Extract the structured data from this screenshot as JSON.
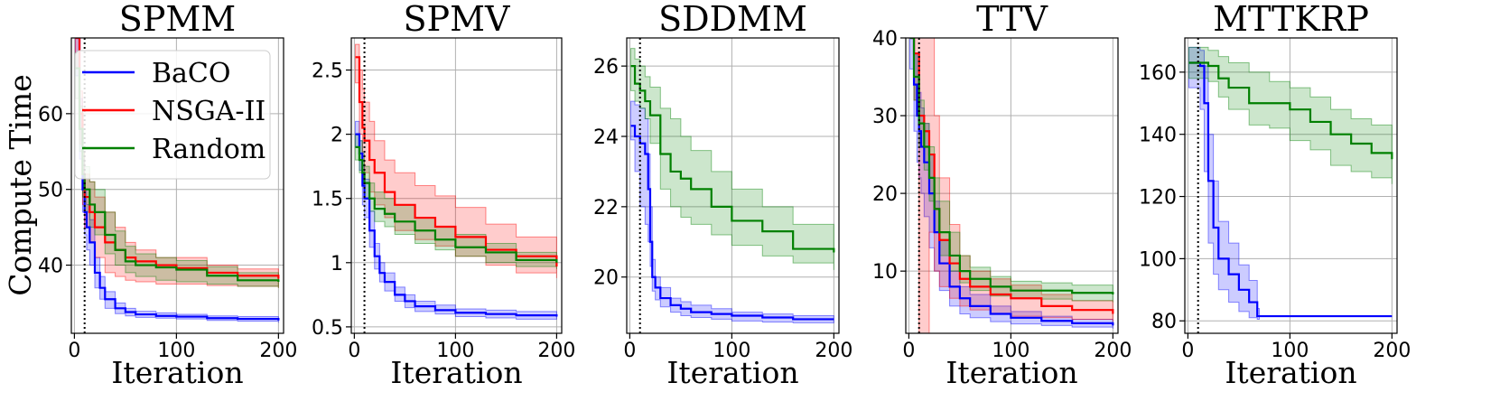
{
  "chart_data": {
    "type": "line",
    "ylabel": "Compute Time",
    "legend": {
      "placement": "top-left of first panel",
      "entries": [
        {
          "name": "BaCO",
          "color": "#0000ff"
        },
        {
          "name": "NSGA-II",
          "color": "#ff0000"
        },
        {
          "name": "Random",
          "color": "#008000"
        }
      ]
    },
    "panels": [
      {
        "title": "SPMM",
        "xlabel": "Iteration",
        "xlim": [
          -3,
          205
        ],
        "ylim": [
          31,
          70
        ],
        "xticks": [
          0,
          100,
          200
        ],
        "yticks": [
          40,
          50,
          60
        ],
        "vline_x": 10,
        "series": [
          {
            "name": "BaCO",
            "x": [
              1,
              5,
              8,
              10,
              12,
              15,
              20,
              25,
              30,
              40,
              50,
              60,
              80,
              100,
              130,
              160,
              200
            ],
            "mean": [
              70,
              58,
              50,
              47,
              45,
              43,
              39,
              37,
              35.5,
              34.3,
              33.8,
              33.5,
              33.3,
              33.2,
              33.0,
              32.9,
              32.7
            ],
            "lo": [
              65,
              54,
              47,
              44,
              42,
              40,
              37,
              35.5,
              34.3,
              33.6,
              33.3,
              33.1,
              33.0,
              32.9,
              32.7,
              32.6,
              32.4
            ],
            "hi": [
              70,
              62,
              54,
              50,
              48,
              46,
              41,
              38.5,
              36.5,
              35.0,
              34.3,
              33.9,
              33.7,
              33.5,
              33.3,
              33.2,
              33.0
            ]
          },
          {
            "name": "NSGA-II",
            "x": [
              1,
              5,
              8,
              10,
              15,
              20,
              30,
              40,
              50,
              60,
              80,
              100,
              130,
              160,
              200
            ],
            "mean": [
              70,
              60,
              52,
              49,
              47,
              45,
              43,
              42,
              41,
              40.5,
              40,
              39.6,
              39.0,
              38.6,
              38.2
            ],
            "lo": [
              66,
              56,
              48,
              45,
              43,
              41,
              39,
              38.5,
              38,
              37.8,
              37.5,
              37.5,
              37.3,
              37.2,
              37.0
            ],
            "hi": [
              70,
              63,
              55,
              52,
              51,
              49,
              47,
              45,
              43,
              42,
              41,
              41,
              40,
              39.5,
              39.2
            ]
          },
          {
            "name": "Random",
            "x": [
              1,
              5,
              8,
              10,
              15,
              20,
              30,
              40,
              50,
              60,
              80,
              100,
              130,
              160,
              200
            ],
            "mean": [
              66,
              58,
              52,
              50,
              48,
              47,
              44,
              42,
              40.5,
              40,
              39.7,
              39.4,
              38.6,
              38,
              37.8
            ],
            "lo": [
              62,
              55,
              49,
              47,
              45,
              44,
              41.5,
              40,
              39,
              38.5,
              38,
              37.8,
              37.5,
              37.2,
              37.0
            ],
            "hi": [
              68,
              61,
              55,
              53,
              51,
              50,
              47,
              44.5,
              42.5,
              41.5,
              41,
              40.6,
              39.8,
              39,
              38.6
            ]
          }
        ]
      },
      {
        "title": "SPMV",
        "xlabel": "Iteration",
        "xlim": [
          -3,
          205
        ],
        "ylim": [
          0.45,
          2.75
        ],
        "xticks": [
          0,
          100,
          200
        ],
        "yticks": [
          0.5,
          1.0,
          1.5,
          2.0,
          2.5
        ],
        "vline_x": 10,
        "series": [
          {
            "name": "BaCO",
            "x": [
              1,
              5,
              8,
              10,
              15,
              20,
              25,
              30,
              40,
              50,
              60,
              80,
              100,
              130,
              160,
              200
            ],
            "mean": [
              2.0,
              1.85,
              1.6,
              1.5,
              1.25,
              1.05,
              0.92,
              0.85,
              0.75,
              0.7,
              0.66,
              0.63,
              0.61,
              0.6,
              0.59,
              0.58
            ],
            "lo": [
              1.9,
              1.72,
              1.45,
              1.35,
              1.12,
              0.95,
              0.85,
              0.78,
              0.7,
              0.65,
              0.62,
              0.6,
              0.58,
              0.57,
              0.56,
              0.56
            ],
            "hi": [
              2.1,
              1.95,
              1.75,
              1.65,
              1.4,
              1.15,
              1.0,
              0.92,
              0.81,
              0.75,
              0.7,
              0.67,
              0.64,
              0.63,
              0.62,
              0.61
            ]
          },
          {
            "name": "NSGA-II",
            "x": [
              1,
              5,
              8,
              10,
              15,
              20,
              30,
              40,
              60,
              80,
              100,
              130,
              160,
              200
            ],
            "mean": [
              2.6,
              2.25,
              2.05,
              1.95,
              1.8,
              1.7,
              1.55,
              1.45,
              1.35,
              1.28,
              1.2,
              1.1,
              1.05,
              0.97
            ],
            "lo": [
              2.4,
              2.0,
              1.8,
              1.7,
              1.55,
              1.45,
              1.35,
              1.25,
              1.18,
              1.13,
              1.05,
              0.98,
              0.92,
              0.88
            ],
            "hi": [
              2.7,
              2.5,
              2.35,
              2.25,
              2.1,
              1.95,
              1.8,
              1.7,
              1.6,
              1.52,
              1.43,
              1.3,
              1.2,
              1.08
            ]
          },
          {
            "name": "Random",
            "x": [
              1,
              5,
              8,
              10,
              15,
              20,
              30,
              40,
              60,
              80,
              100,
              130,
              160,
              200
            ],
            "mean": [
              1.9,
              1.8,
              1.7,
              1.62,
              1.5,
              1.42,
              1.38,
              1.32,
              1.25,
              1.18,
              1.12,
              1.08,
              1.02,
              1.0
            ],
            "lo": [
              1.8,
              1.7,
              1.6,
              1.5,
              1.4,
              1.32,
              1.28,
              1.22,
              1.15,
              1.1,
              1.05,
              1.0,
              0.97,
              0.95
            ],
            "hi": [
              2.0,
              1.95,
              1.85,
              1.75,
              1.62,
              1.55,
              1.5,
              1.45,
              1.35,
              1.28,
              1.22,
              1.15,
              1.08,
              1.05
            ]
          }
        ]
      },
      {
        "title": "SDDMM",
        "xlabel": "Iteration",
        "xlim": [
          -3,
          205
        ],
        "ylim": [
          18.4,
          26.8
        ],
        "xticks": [
          0,
          100,
          200
        ],
        "yticks": [
          20,
          22,
          24,
          26
        ],
        "vline_x": 10,
        "series": [
          {
            "name": "BaCO",
            "x": [
              1,
              5,
              10,
              15,
              18,
              20,
              22,
              25,
              30,
              40,
              50,
              60,
              80,
              100,
              130,
              160,
              200
            ],
            "mean": [
              24.3,
              24.0,
              23.8,
              23.5,
              22.5,
              21.0,
              20.0,
              19.7,
              19.4,
              19.2,
              19.1,
              19.0,
              18.95,
              18.9,
              18.85,
              18.8,
              18.8
            ],
            "lo": [
              23.9,
              23.0,
              22.0,
              21.5,
              21.0,
              20.3,
              19.6,
              19.35,
              19.15,
              19.0,
              18.9,
              18.85,
              18.8,
              18.75,
              18.72,
              18.7,
              18.7
            ],
            "hi": [
              25.0,
              24.9,
              24.8,
              24.5,
              23.5,
              22.0,
              20.5,
              20.0,
              19.7,
              19.4,
              19.3,
              19.2,
              19.1,
              19.0,
              18.95,
              18.9,
              18.9
            ]
          },
          {
            "name": "Random",
            "x": [
              1,
              5,
              10,
              15,
              20,
              30,
              40,
              50,
              60,
              80,
              100,
              130,
              160,
              200
            ],
            "mean": [
              26.0,
              25.5,
              25.3,
              25.0,
              24.6,
              23.5,
              23.0,
              22.8,
              22.5,
              22.0,
              21.6,
              21.3,
              20.8,
              20.7
            ],
            "lo": [
              25.3,
              25.0,
              24.8,
              24.5,
              23.8,
              22.5,
              22.0,
              21.7,
              21.5,
              21.2,
              20.9,
              20.6,
              20.4,
              20.2
            ],
            "hi": [
              26.5,
              26.2,
              26.0,
              25.7,
              25.4,
              24.8,
              24.5,
              24.0,
              23.6,
              23.0,
              22.5,
              22.0,
              21.5,
              21.3
            ]
          }
        ]
      },
      {
        "title": "TTV",
        "xlabel": "Iteration",
        "xlim": [
          -3,
          205
        ],
        "ylim": [
          2,
          40
        ],
        "xticks": [
          0,
          100,
          200
        ],
        "yticks": [
          10,
          20,
          30,
          40
        ],
        "vline_x": 10,
        "series": [
          {
            "name": "BaCO",
            "x": [
              1,
              5,
              8,
              10,
              12,
              15,
              20,
              25,
              30,
              40,
              50,
              60,
              80,
              100,
              130,
              160,
              200
            ],
            "mean": [
              40,
              34,
              30,
              28,
              26,
              24,
              20,
              15,
              11,
              8,
              6.5,
              5.5,
              4.5,
              4,
              3.6,
              3.3,
              3
            ],
            "lo": [
              36,
              28,
              24,
              22,
              20,
              17,
              13,
              10,
              7.5,
              5.5,
              4.5,
              4,
              3.5,
              3.2,
              3,
              2.8,
              2.6
            ],
            "hi": [
              40,
              38,
              35,
              33,
              31,
              29,
              25,
              19,
              14,
              10,
              8,
              7,
              5.5,
              4.8,
              4.2,
              3.8,
              3.5
            ]
          },
          {
            "name": "NSGA-II",
            "x": [
              1,
              5,
              10,
              15,
              20,
              25,
              30,
              40,
              50,
              60,
              80,
              100,
              130,
              160,
              200
            ],
            "mean": [
              40,
              38,
              30,
              28,
              25,
              18,
              14,
              11,
              9,
              8,
              7,
              6.5,
              5.5,
              5,
              4.5
            ],
            "lo": [
              40,
              32,
              2,
              2,
              15,
              10,
              8,
              6.5,
              5.5,
              5,
              4.5,
              4.2,
              4,
              3.8,
              3.5
            ],
            "hi": [
              40,
              40,
              40,
              40,
              40,
              30,
              22,
              16,
              12,
              10,
              9,
              8.2,
              7,
              6.2,
              5.5
            ]
          },
          {
            "name": "Random",
            "x": [
              1,
              5,
              10,
              15,
              20,
              25,
              30,
              40,
              50,
              60,
              80,
              100,
              130,
              160,
              200
            ],
            "mean": [
              40,
              35,
              29,
              26,
              22,
              18,
              15,
              12,
              10,
              9,
              8,
              7.5,
              7.5,
              7.2,
              7
            ],
            "lo": [
              40,
              32,
              26,
              23,
              19,
              15,
              12,
              10,
              8.5,
              7.5,
              6.8,
              6.5,
              6.4,
              6.2,
              6
            ],
            "hi": [
              40,
              38,
              32,
              29,
              26,
              22,
              19,
              15,
              12,
              10.5,
              9.3,
              8.7,
              8.5,
              8.2,
              8
            ]
          }
        ]
      },
      {
        "title": "MTTKRP",
        "xlabel": "Iteration",
        "xlim": [
          -3,
          205
        ],
        "ylim": [
          76,
          171
        ],
        "xticks": [
          0,
          100,
          200
        ],
        "yticks": [
          80,
          100,
          120,
          140,
          160
        ],
        "vline_x": 10,
        "series": [
          {
            "name": "BaCO",
            "x": [
              1,
              8,
              12,
              16,
              20,
              25,
              30,
              40,
              50,
              60,
              68,
              70,
              100,
              150,
              200
            ],
            "mean": [
              163,
              163,
              162,
              150,
              125,
              110,
              100,
              95,
              90,
              86,
              81.5,
              81.5,
              81.5,
              81.5,
              81.5
            ],
            "lo": [
              155,
              155,
              148,
              128,
              105,
              95,
              90,
              86,
              83,
              81,
              80.5,
              81.5,
              81.5,
              81.5,
              81.5
            ],
            "hi": [
              168,
              168,
              167,
              162,
              140,
              125,
              112,
              105,
              98,
              93,
              84,
              81.5,
              81.5,
              81.5,
              81.5
            ]
          },
          {
            "name": "Random",
            "x": [
              1,
              10,
              20,
              30,
              40,
              60,
              80,
              100,
              120,
              140,
              160,
              180,
              200
            ],
            "mean": [
              163,
              163,
              162,
              158,
              155,
              150,
              150,
              148,
              144,
              140,
              137,
              134,
              132
            ],
            "lo": [
              158,
              158,
              157,
              152,
              148,
              143,
              142,
              138,
              135,
              130,
              128,
              126,
              124
            ],
            "hi": [
              168,
              168,
              167,
              165,
              163,
              160,
              157,
              155,
              152,
              148,
              145,
              143,
              140
            ]
          }
        ]
      }
    ]
  }
}
